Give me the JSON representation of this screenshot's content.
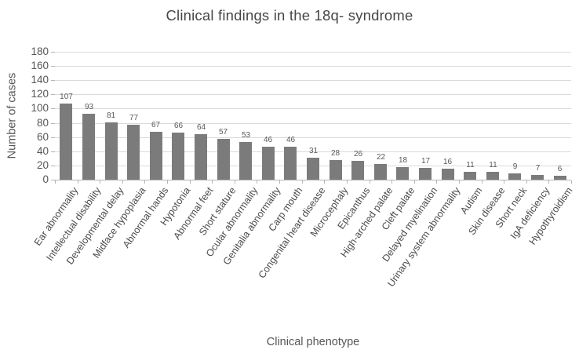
{
  "chart_data": {
    "type": "bar",
    "title": "Clinical findings in the 18q- syndrome",
    "xlabel": "Clinical phenotype",
    "ylabel": "Number of cases",
    "categories": [
      "Ear abnormality",
      "Intellectual disability",
      "Developmental delay",
      "Midface hypoplasia",
      "Abnormal hands",
      "Hypotonia",
      "Abnormal feet",
      "Short stature",
      "Ocular abnormality",
      "Genitalia abnormality",
      "Carp mouth",
      "Congenital heart disease",
      "Microcephaly",
      "Epicanthus",
      "High-arched palate",
      "Cleft palate",
      "Delayed myelination",
      "Urinary system abnormality",
      "Autism",
      "Skin disease",
      "Short neck",
      "IgA deficiency",
      "Hypothyroidism"
    ],
    "values": [
      107,
      93,
      81,
      77,
      67,
      66,
      64,
      57,
      53,
      46,
      46,
      31,
      28,
      26,
      22,
      18,
      17,
      16,
      11,
      11,
      9,
      7,
      6
    ],
    "ylim": [
      0,
      180
    ],
    "yticks": [
      0,
      20,
      40,
      60,
      80,
      100,
      120,
      140,
      160,
      180
    ],
    "grid": true,
    "legend": false,
    "data_labels": true,
    "colors": {
      "bar": "#7b7b7b",
      "gridline": "#dadada",
      "axis": "#b5b5b5",
      "text": "#565656"
    }
  }
}
